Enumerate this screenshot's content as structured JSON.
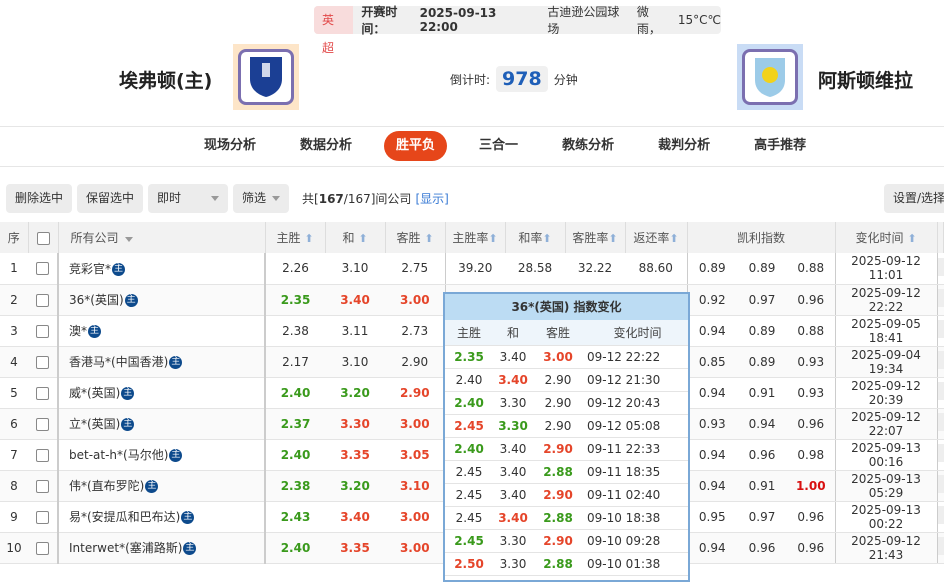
{
  "match": {
    "league": "英超",
    "kickoff_label": "开赛时间：",
    "kickoff": "2025-09-13 22:00",
    "venue": "古迪逊公园球场",
    "weather": "微雨，",
    "temp": "15°C℃",
    "home": "埃弗顿(主)",
    "away": "阿斯顿维拉",
    "countdown_label": "倒计时:",
    "countdown": "978",
    "countdown_unit": "分钟"
  },
  "nav": [
    "现场分析",
    "数据分析",
    "胜平负",
    "三合一",
    "教练分析",
    "裁判分析",
    "高手推荐"
  ],
  "nav_active": 2,
  "toolbar": {
    "delete": "删除选中",
    "keep": "保留选中",
    "mode": "即时",
    "filter": "筛选",
    "count_prefix": "共[",
    "count_shown": "167",
    "count_total": "/167]间公司",
    "show": "[显示]",
    "settings": "设置/选择"
  },
  "headers": {
    "idx": "序",
    "company": "所有公司",
    "home": "主胜",
    "draw": "和",
    "away": "客胜",
    "home_rate": "主胜率",
    "draw_rate": "和率",
    "away_rate": "客胜率",
    "return_rate": "返还率",
    "kelly": "凯利指数",
    "time": "变化时间"
  },
  "badge": "主",
  "colors": {
    "up": "#3a9a1c",
    "down": "#e5452a",
    "active_tab": "#e6461a"
  },
  "rows": [
    {
      "i": "1",
      "name": "竞彩官*",
      "h": "2.26",
      "d": "3.10",
      "a": "2.75",
      "hc": "",
      "dc": "",
      "ac": "",
      "hr": "39.20",
      "dr": "28.58",
      "ar": "32.22",
      "rr": "88.60",
      "k1": "0.89",
      "k2": "0.89",
      "k3": "0.88",
      "k3c": "",
      "t": "2025-09-12 11:01"
    },
    {
      "i": "2",
      "name": "36*(英国)",
      "h": "2.35",
      "d": "3.40",
      "a": "3.00",
      "hc": "g",
      "dc": "r",
      "ac": "r",
      "hr": "",
      "dr": "",
      "ar": "",
      "rr": "",
      "k1": "0.92",
      "k2": "0.97",
      "k3": "0.96",
      "k3c": "",
      "t": "2025-09-12 22:22"
    },
    {
      "i": "3",
      "name": "澳*",
      "h": "2.38",
      "d": "3.11",
      "a": "2.73",
      "hc": "",
      "dc": "",
      "ac": "",
      "hr": "",
      "dr": "",
      "ar": "",
      "rr": "",
      "k1": "0.94",
      "k2": "0.89",
      "k3": "0.88",
      "k3c": "",
      "t": "2025-09-05 18:41"
    },
    {
      "i": "4",
      "name": "香港马*(中国香港)",
      "h": "2.17",
      "d": "3.10",
      "a": "2.90",
      "hc": "",
      "dc": "",
      "ac": "",
      "hr": "",
      "dr": "",
      "ar": "",
      "rr": "",
      "k1": "0.85",
      "k2": "0.89",
      "k3": "0.93",
      "k3c": "",
      "t": "2025-09-04 19:34"
    },
    {
      "i": "5",
      "name": "威*(英国)",
      "h": "2.40",
      "d": "3.20",
      "a": "2.90",
      "hc": "g",
      "dc": "g",
      "ac": "r",
      "hr": "",
      "dr": "",
      "ar": "",
      "rr": "",
      "k1": "0.94",
      "k2": "0.91",
      "k3": "0.93",
      "k3c": "",
      "t": "2025-09-12 20:39"
    },
    {
      "i": "6",
      "name": "立*(英国)",
      "h": "2.37",
      "d": "3.30",
      "a": "3.00",
      "hc": "g",
      "dc": "r",
      "ac": "r",
      "hr": "",
      "dr": "",
      "ar": "",
      "rr": "",
      "k1": "0.93",
      "k2": "0.94",
      "k3": "0.96",
      "k3c": "",
      "t": "2025-09-12 22:07"
    },
    {
      "i": "7",
      "name": "bet-at-h*(马尔他)",
      "h": "2.40",
      "d": "3.35",
      "a": "3.05",
      "hc": "g",
      "dc": "r",
      "ac": "r",
      "hr": "",
      "dr": "",
      "ar": "",
      "rr": "",
      "k1": "0.94",
      "k2": "0.96",
      "k3": "0.98",
      "k3c": "",
      "t": "2025-09-13 00:16"
    },
    {
      "i": "8",
      "name": "伟*(直布罗陀)",
      "h": "2.38",
      "d": "3.20",
      "a": "3.10",
      "hc": "g",
      "dc": "g",
      "ac": "r",
      "hr": "",
      "dr": "",
      "ar": "",
      "rr": "",
      "k1": "0.94",
      "k2": "0.91",
      "k3": "1.00",
      "k3c": "rr",
      "t": "2025-09-13 05:29"
    },
    {
      "i": "9",
      "name": "易*(安提瓜和巴布达)",
      "h": "2.43",
      "d": "3.40",
      "a": "3.00",
      "hc": "g",
      "dc": "r",
      "ac": "r",
      "hr": "",
      "dr": "",
      "ar": "",
      "rr": "",
      "k1": "0.95",
      "k2": "0.97",
      "k3": "0.96",
      "k3c": "",
      "t": "2025-09-13 00:22"
    },
    {
      "i": "10",
      "name": "Interwet*(塞浦路斯)",
      "h": "2.40",
      "d": "3.35",
      "a": "3.00",
      "hc": "g",
      "dc": "r",
      "ac": "r",
      "hr": "",
      "dr": "",
      "ar": "",
      "rr": "",
      "k1": "0.94",
      "k2": "0.96",
      "k3": "0.96",
      "k3c": "",
      "t": "2025-09-12 21:43"
    }
  ],
  "popup": {
    "title": "36*(英国) 指数变化",
    "headers": [
      "主胜",
      "和",
      "客胜",
      "变化时间"
    ],
    "rows": [
      [
        "2.35",
        "g",
        "3.40",
        "",
        "3.00",
        "r",
        "09-12 22:22"
      ],
      [
        "2.40",
        "",
        "3.40",
        "r",
        "2.90",
        "",
        "09-12 21:30"
      ],
      [
        "2.40",
        "g",
        "3.30",
        "",
        "2.90",
        "",
        "09-12 20:43"
      ],
      [
        "2.45",
        "r",
        "3.30",
        "g",
        "2.90",
        "",
        "09-12 05:08"
      ],
      [
        "2.40",
        "g",
        "3.40",
        "",
        "2.90",
        "r",
        "09-11 22:33"
      ],
      [
        "2.45",
        "",
        "3.40",
        "",
        "2.88",
        "g",
        "09-11 18:35"
      ],
      [
        "2.45",
        "",
        "3.40",
        "",
        "2.90",
        "r",
        "09-11 02:40"
      ],
      [
        "2.45",
        "",
        "3.40",
        "r",
        "2.88",
        "g",
        "09-10 18:38"
      ],
      [
        "2.45",
        "g",
        "3.30",
        "",
        "2.90",
        "r",
        "09-10 09:28"
      ],
      [
        "2.50",
        "r",
        "3.30",
        "",
        "2.88",
        "g",
        "09-10 01:38"
      ]
    ]
  }
}
